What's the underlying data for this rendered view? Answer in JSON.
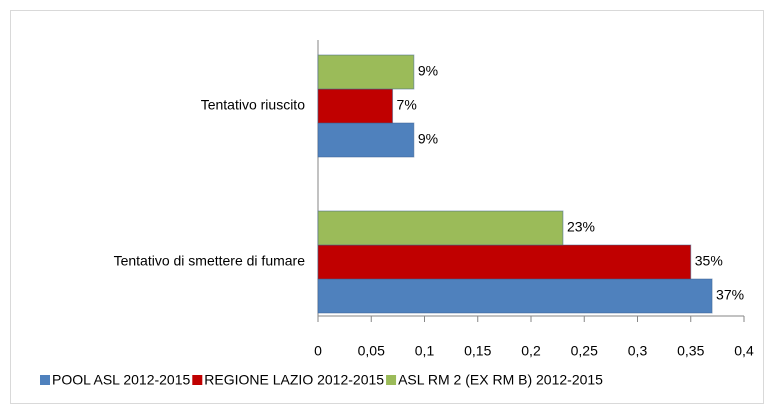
{
  "chart_data": {
    "type": "bar",
    "orientation": "horizontal",
    "categories": [
      "Tentativo riuscito",
      "Tentativo di smettere di fumare"
    ],
    "series": [
      {
        "name": "POOL ASL 2012-2015",
        "color": "#4f81bd",
        "values": [
          0.09,
          0.37
        ],
        "value_labels": [
          "9%",
          "37%"
        ]
      },
      {
        "name": "REGIONE LAZIO 2012-2015",
        "color": "#c00000",
        "values": [
          0.07,
          0.35
        ],
        "value_labels": [
          "7%",
          "35%"
        ]
      },
      {
        "name": "ASL RM 2 (EX RM B) 2012-2015",
        "color": "#9bbb59",
        "values": [
          0.09,
          0.23
        ],
        "value_labels": [
          "9%",
          "23%"
        ]
      }
    ],
    "xlim": [
      0,
      0.4
    ],
    "xticks": [
      0,
      {
        "value": 0.05,
        "label": "0,05"
      },
      {
        "value": 0.1,
        "label": "0,1"
      },
      {
        "value": 0.15,
        "label": "0,15"
      },
      {
        "value": 0.2,
        "label": "0,2"
      },
      {
        "value": 0.25,
        "label": "0,25"
      },
      {
        "value": 0.3,
        "label": "0,3"
      },
      {
        "value": 0.35,
        "label": "0,35"
      },
      {
        "value": 0.4,
        "label": "0,4"
      }
    ],
    "grid": false,
    "legend": "bottom"
  }
}
